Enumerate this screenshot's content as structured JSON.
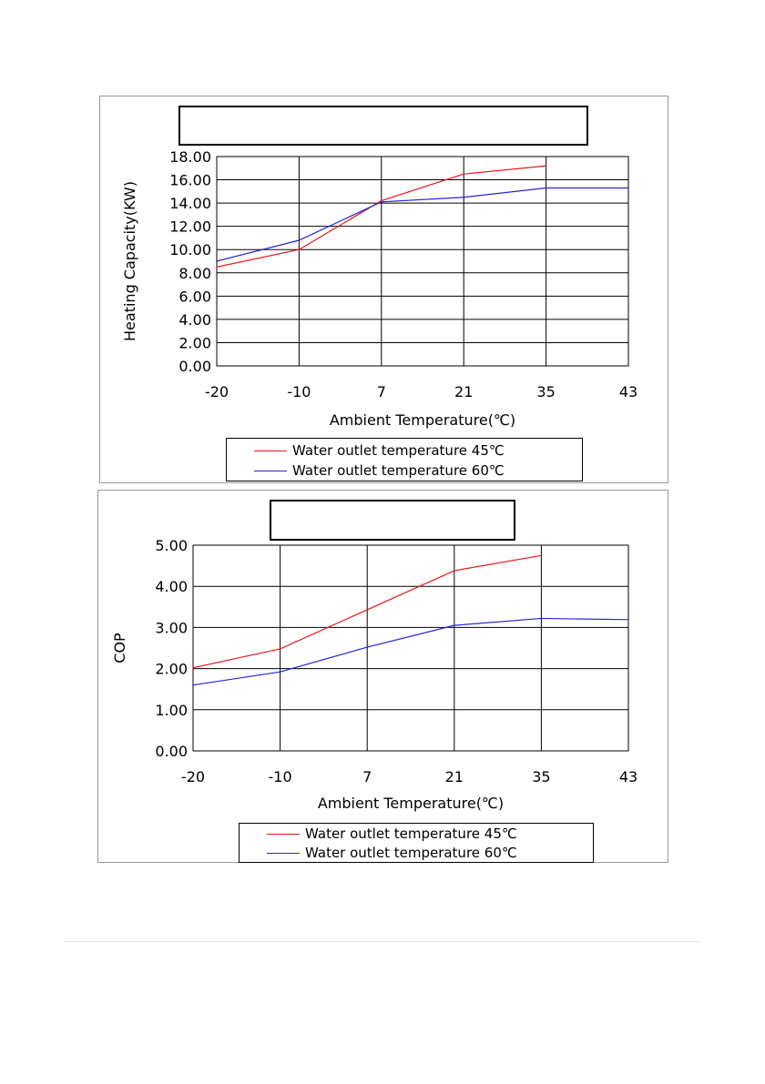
{
  "colors": {
    "series_45": "#e8161a",
    "series_60": "#2424d8",
    "grid": "#000000"
  },
  "charts": [
    {
      "legend": [
        "Water outlet temperature 45℃",
        "Water outlet temperature 60℃"
      ]
    },
    {
      "legend": [
        "Water outlet temperature 45℃",
        "Water outlet temperature 60℃"
      ]
    }
  ],
  "chart_data": [
    {
      "type": "line",
      "title": "",
      "xlabel": "Ambient Temperature(℃)",
      "ylabel": "Heating Capacity(KW)",
      "categories": [
        "-20",
        "-10",
        "7",
        "21",
        "35",
        "43"
      ],
      "ylim": [
        0,
        18
      ],
      "yticks": [
        "0.00",
        "2.00",
        "4.00",
        "6.00",
        "8.00",
        "10.00",
        "12.00",
        "14.00",
        "16.00",
        "18.00"
      ],
      "grid": true,
      "legend_position": "bottom",
      "series": [
        {
          "name": "Water outlet temperature 45℃",
          "values": [
            8.5,
            10.0,
            14.2,
            16.5,
            17.2,
            null
          ]
        },
        {
          "name": "Water outlet temperature 60℃",
          "values": [
            9.0,
            10.8,
            14.1,
            14.5,
            15.3,
            15.3
          ]
        }
      ]
    },
    {
      "type": "line",
      "title": "",
      "xlabel": "Ambient Temperature(℃)",
      "ylabel": "COP",
      "categories": [
        "-20",
        "-10",
        "7",
        "21",
        "35",
        "43"
      ],
      "ylim": [
        0,
        5
      ],
      "yticks": [
        "0.00",
        "1.00",
        "2.00",
        "3.00",
        "4.00",
        "5.00"
      ],
      "grid": true,
      "legend_position": "bottom",
      "series": [
        {
          "name": "Water outlet temperature 45℃",
          "values": [
            2.02,
            2.48,
            3.43,
            4.38,
            4.75,
            null
          ]
        },
        {
          "name": "Water outlet temperature 60℃",
          "values": [
            1.6,
            1.92,
            2.52,
            3.05,
            3.22,
            3.19
          ]
        }
      ]
    }
  ]
}
